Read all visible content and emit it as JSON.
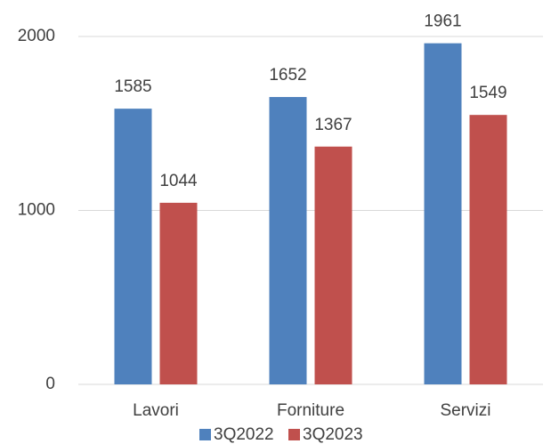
{
  "chart_data": {
    "type": "bar",
    "categories": [
      "Lavori",
      "Forniture",
      "Servizi"
    ],
    "series": [
      {
        "name": "3Q2022",
        "color": "#4f81bd",
        "values": [
          1585,
          1652,
          1961
        ]
      },
      {
        "name": "3Q2023",
        "color": "#c0504d",
        "values": [
          1044,
          1367,
          1549
        ]
      }
    ],
    "ylim": [
      0,
      2000
    ],
    "yticks": [
      0,
      1000,
      2000
    ],
    "grid": true,
    "legend": "bottom"
  }
}
